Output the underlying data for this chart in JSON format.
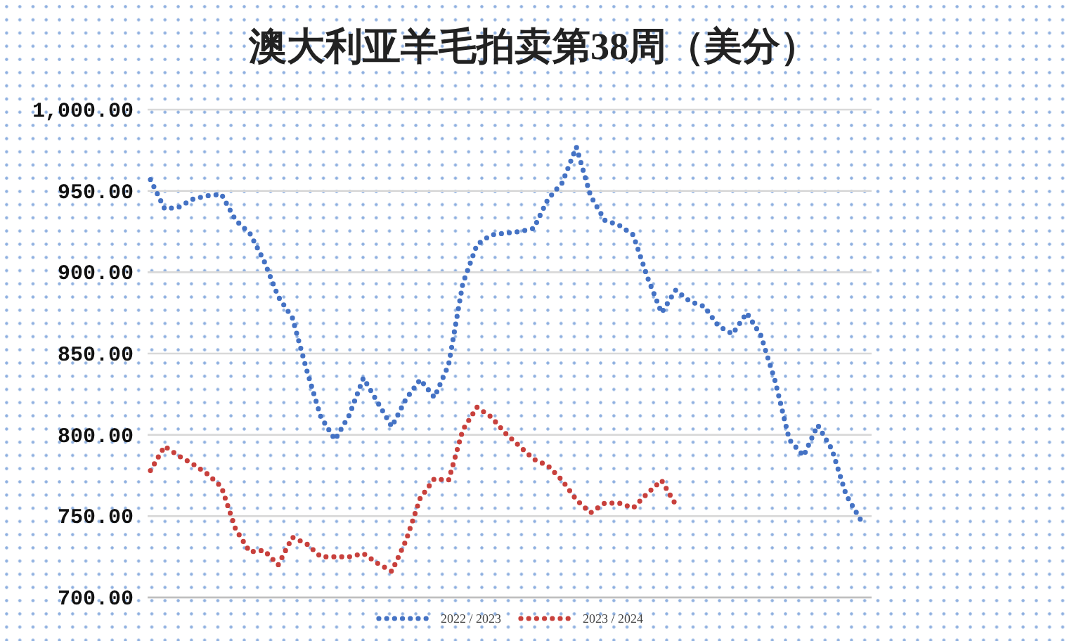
{
  "chart_data": {
    "type": "line",
    "title": "澳大利亚羊毛拍卖第38周（美分）",
    "categories": [
      null,
      null,
      null,
      null,
      null,
      null,
      null,
      null,
      null,
      null,
      null,
      null,
      null,
      null,
      null,
      null,
      null,
      null,
      null,
      null,
      null,
      null,
      null,
      null,
      null,
      null,
      null,
      null,
      null,
      null,
      null,
      null,
      null,
      null,
      null,
      null,
      null,
      null,
      null,
      null,
      null,
      null,
      null,
      null,
      null,
      null,
      null,
      null,
      null,
      null,
      null
    ],
    "series": [
      {
        "name": "2022 / 2023",
        "color": "#4472c4",
        "values": [
          957,
          939,
          940,
          945,
          947,
          948,
          932,
          924,
          907,
          885,
          872,
          840,
          811,
          797,
          812,
          835,
          820,
          805,
          822,
          834,
          823,
          843,
          893,
          917,
          923,
          924,
          925,
          927,
          945,
          955,
          977,
          947,
          932,
          929,
          923,
          897,
          875,
          889,
          882,
          879,
          867,
          862,
          875,
          861,
          833,
          797,
          787,
          806,
          791,
          763,
          748
        ]
      },
      {
        "name": "2023 / 2024",
        "color": "#c8403c",
        "values": [
          778,
          793,
          787,
          782,
          776,
          768,
          742,
          728,
          729,
          720,
          737,
          733,
          725,
          725,
          725,
          727,
          721,
          716,
          735,
          761,
          773,
          772,
          803,
          817,
          811,
          801,
          793,
          785,
          781,
          772,
          760,
          752,
          758,
          758,
          755,
          764,
          772,
          757,
          null,
          null,
          null,
          null,
          null,
          null,
          null,
          null,
          null,
          null,
          null,
          null,
          null
        ]
      }
    ],
    "ylim": [
      700,
      1000
    ],
    "yticks": [
      {
        "value": 700,
        "label": "700.00"
      },
      {
        "value": 750,
        "label": "750.00"
      },
      {
        "value": 800,
        "label": "800.00"
      },
      {
        "value": 850,
        "label": "850.00"
      },
      {
        "value": 900,
        "label": "900.00"
      },
      {
        "value": 950,
        "label": "950.00"
      },
      {
        "value": 1000,
        "label": "1,000.00"
      }
    ],
    "grid": "y",
    "legend": "bottom",
    "line_style": "dotted"
  }
}
